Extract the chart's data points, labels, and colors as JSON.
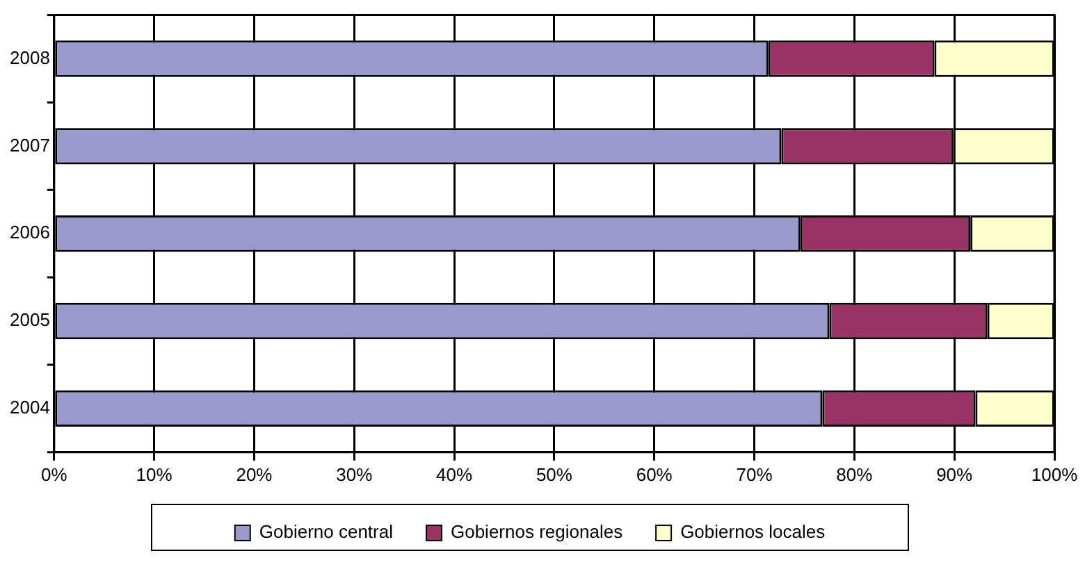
{
  "chart_data": {
    "type": "bar",
    "orientation": "horizontal",
    "stacked": true,
    "categories": [
      "2008",
      "2007",
      "2006",
      "2005",
      "2004"
    ],
    "series": [
      {
        "name": "Gobierno central",
        "color": "#9999cc",
        "values": [
          71.4,
          72.7,
          74.6,
          77.5,
          76.8
        ]
      },
      {
        "name": "Gobiernos regionales",
        "color": "#993366",
        "values": [
          16.6,
          17.2,
          17.0,
          15.8,
          15.3
        ]
      },
      {
        "name": "Gobiernos locales",
        "color": "#ffffcc",
        "values": [
          12.0,
          10.1,
          8.4,
          6.7,
          7.9
        ]
      }
    ],
    "xlim": [
      0,
      100
    ],
    "xticks": [
      {
        "value": 0,
        "label": "0%"
      },
      {
        "value": 10,
        "label": "10%"
      },
      {
        "value": 20,
        "label": "20%"
      },
      {
        "value": 30,
        "label": "30%"
      },
      {
        "value": 40,
        "label": "40%"
      },
      {
        "value": 50,
        "label": "50%"
      },
      {
        "value": 60,
        "label": "60%"
      },
      {
        "value": 70,
        "label": "70%"
      },
      {
        "value": 80,
        "label": "80%"
      },
      {
        "value": 90,
        "label": "90%"
      },
      {
        "value": 100,
        "label": "100%"
      }
    ],
    "grid": "x",
    "legend": "bottom"
  }
}
